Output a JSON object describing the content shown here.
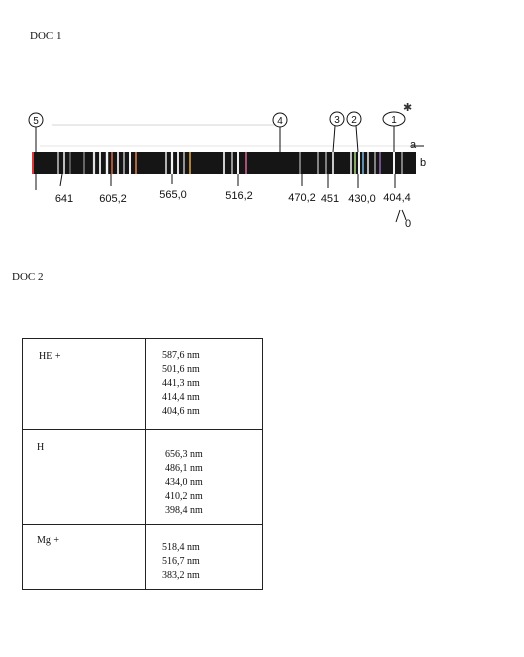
{
  "doc1": {
    "label": "DOC 1",
    "circle_labels": [
      "5",
      "4",
      "3",
      "2",
      "1"
    ],
    "side_labels": {
      "a": "a",
      "b": "b",
      "zero": "0"
    },
    "wavelength_labels": [
      "641",
      "605,2",
      "565,0",
      "516,2",
      "470,2",
      "451",
      "430,0",
      "404,4"
    ]
  },
  "doc2": {
    "label": "DOC 2",
    "rows": [
      {
        "ion": "HE +",
        "wavelengths": [
          "587,6 nm",
          "501,6 nm",
          "441,3 nm",
          "414,4 nm",
          "404,6 nm"
        ]
      },
      {
        "ion": "H",
        "wavelengths": [
          "656,3 nm",
          "486,1 nm",
          "434,0 nm",
          "410,2 nm",
          "398,4 nm"
        ]
      },
      {
        "ion": "Mg +",
        "wavelengths": [
          "518,4 nm",
          "516,7 nm",
          "383,2 nm"
        ]
      }
    ]
  }
}
